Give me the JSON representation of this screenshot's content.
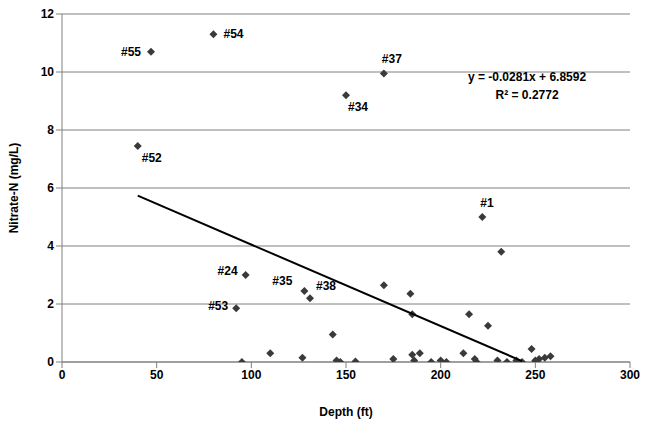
{
  "chart_data": {
    "type": "scatter",
    "x_label": "Depth (ft)",
    "y_label": "Nitrate-N (mg/L)",
    "xlim": [
      0,
      300
    ],
    "xticks": [
      0,
      50,
      100,
      150,
      200,
      250,
      300
    ],
    "ylim": [
      0,
      12
    ],
    "yticks": [
      0,
      2,
      4,
      6,
      8,
      10,
      12
    ],
    "grid": true,
    "annotations": [
      "y = -0.0281x + 6.8592",
      "R² = 0.2772"
    ],
    "series": [
      {
        "type": "scatter",
        "marker": "diamond",
        "color": "#3a3a3a",
        "x": [
          47,
          80,
          170,
          150,
          40,
          222,
          232,
          97,
          128,
          131,
          92,
          170,
          184,
          185,
          215,
          225,
          143,
          110,
          127,
          95,
          145,
          147,
          155,
          175,
          185,
          186,
          189,
          195,
          200,
          203,
          212,
          218,
          219,
          230,
          235,
          240,
          248,
          250,
          252,
          255,
          258,
          243,
          250
        ],
        "values": [
          10.7,
          11.3,
          9.95,
          9.2,
          7.45,
          5.0,
          3.8,
          3.0,
          2.45,
          2.2,
          1.85,
          2.65,
          2.35,
          1.65,
          1.65,
          1.25,
          0.95,
          0.3,
          0.15,
          0.0,
          0.05,
          0.0,
          0.02,
          0.1,
          0.25,
          0.05,
          0.3,
          0.0,
          0.05,
          0.0,
          0.3,
          0.1,
          0.0,
          0.05,
          0.0,
          0.05,
          0.45,
          0.05,
          0.1,
          0.15,
          0.2,
          0.0,
          0.0
        ],
        "labels": [
          "#55",
          "#54",
          "#37",
          "#34",
          "#52",
          "#1",
          null,
          "#24",
          "#35",
          "#38",
          "#53",
          null,
          null,
          null,
          null,
          null,
          null,
          null,
          null,
          null,
          null,
          null,
          null,
          null,
          null,
          null,
          null,
          null,
          null,
          null,
          null,
          null,
          null,
          null,
          null,
          null,
          null,
          null,
          null,
          null,
          null,
          null,
          null
        ]
      },
      {
        "type": "line",
        "line_style": "solid",
        "color": "#000000",
        "x": [
          40,
          243
        ],
        "values": [
          5.735,
          0.031
        ]
      }
    ]
  }
}
